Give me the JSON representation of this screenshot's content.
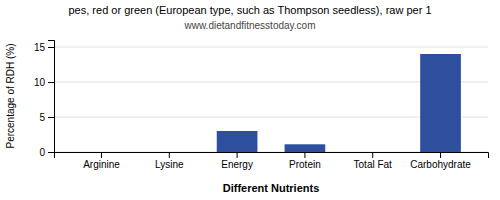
{
  "chart_data": {
    "type": "bar",
    "title": "pes, red or green (European type, such as Thompson seedless), raw per 1",
    "subtitle": "www.dietandfitnesstoday.com",
    "xlabel": "Different Nutrients",
    "ylabel": "Percentage of RDH (%)",
    "categories": [
      "Arginine",
      "Lysine",
      "Energy",
      "Protein",
      "Total Fat",
      "Carbohydrate"
    ],
    "values": [
      0.0,
      0.0,
      3.0,
      1.1,
      0.0,
      14.0
    ],
    "color": "#2e4e9e",
    "ylim": [
      0,
      16
    ],
    "yticks": [
      0,
      5,
      10,
      15
    ],
    "grid": true
  }
}
